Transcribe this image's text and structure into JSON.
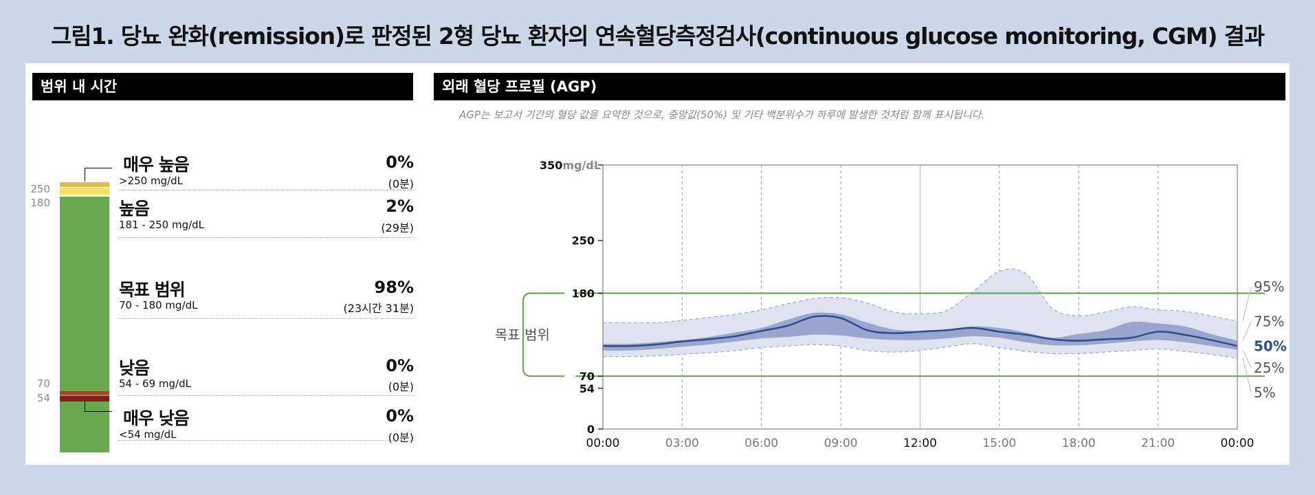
{
  "figure_title": "그림1. 당뇨 완화(remission)로 판정된 2형 당뇨 환자의 연속혈당측정검사(continuous glucose monitoring, CGM) 결과",
  "tir": {
    "header": "범위 내 시간",
    "ticks": [
      "250",
      "180",
      "70",
      "54"
    ],
    "colors": {
      "very_high": "#e3b94a",
      "high": "#f4e25f",
      "target": "#6aa84f",
      "low": "#c0392b",
      "very_low": "#8b1a1a"
    },
    "categories": [
      {
        "name": "매우 높음",
        "range": ">250 mg/dL",
        "percent": "0%",
        "duration": "(0분)"
      },
      {
        "name": "높음",
        "range": "181 - 250 mg/dL",
        "percent": "2%",
        "duration": "(29분)"
      },
      {
        "name": "목표 범위",
        "range": "70 - 180 mg/dL",
        "percent": "98%",
        "duration": "(23시간 31분)"
      },
      {
        "name": "낮음",
        "range": "54 - 69 mg/dL",
        "percent": "0%",
        "duration": "(0분)"
      },
      {
        "name": "매우 낮음",
        "range": "<54 mg/dL",
        "percent": "0%",
        "duration": "(0분)"
      }
    ]
  },
  "agp": {
    "header": "외래 혈당 프로필 (AGP)",
    "note": "AGP는 보고서 기간의 혈당 값을 요약한 것으로, 중앙값(50%) 및 기타 백분위수가 하루에 발생한 것처럼 함께 표시됩니다.",
    "target_label": "목표 범위",
    "colors": {
      "median": "#2e4f8a",
      "iqr": "#9aa6d0",
      "outer": "#dfe3f0",
      "target_line": "#6aa84f"
    }
  },
  "chart_data": {
    "type": "area",
    "y_unit": "mg/dL",
    "ylim": [
      0,
      350
    ],
    "y_ticks": [
      0,
      54,
      70,
      180,
      250,
      350
    ],
    "y_tick_labels": [
      "0",
      "54",
      "70",
      "180",
      "250",
      "350"
    ],
    "target_range": [
      70,
      180
    ],
    "x_tick_labels": [
      "00:00",
      "03:00",
      "06:00",
      "09:00",
      "12:00",
      "15:00",
      "18:00",
      "21:00",
      "00:00"
    ],
    "x_hours": [
      0,
      1,
      2,
      3,
      4,
      5,
      6,
      7,
      8,
      9,
      10,
      11,
      12,
      13,
      14,
      15,
      16,
      17,
      18,
      19,
      20,
      21,
      22,
      23,
      24
    ],
    "series": [
      {
        "name": "95%",
        "values": [
          141,
          141,
          141,
          144,
          148,
          152,
          158,
          166,
          173,
          174,
          167,
          155,
          153,
          157,
          182,
          209,
          206,
          160,
          150,
          155,
          162,
          158,
          156,
          150,
          143
        ]
      },
      {
        "name": "75%",
        "values": [
          113,
          113,
          115,
          118,
          122,
          128,
          134,
          145,
          154,
          152,
          141,
          132,
          130,
          132,
          136,
          134,
          128,
          121,
          126,
          131,
          142,
          140,
          136,
          126,
          117
        ]
      },
      {
        "name": "50%",
        "values": [
          110,
          110,
          112,
          116,
          119,
          123,
          130,
          137,
          149,
          147,
          131,
          127,
          129,
          131,
          134,
          129,
          125,
          119,
          117,
          119,
          121,
          129,
          125,
          118,
          110
        ]
      },
      {
        "name": "25%",
        "values": [
          104,
          104,
          106,
          109,
          112,
          116,
          120,
          122,
          125,
          124,
          120,
          118,
          118,
          120,
          123,
          121,
          115,
          111,
          111,
          113,
          116,
          118,
          115,
          110,
          105
        ]
      },
      {
        "name": "5%",
        "values": [
          96,
          96,
          97,
          99,
          101,
          104,
          108,
          110,
          112,
          110,
          104,
          102,
          104,
          109,
          113,
          108,
          103,
          100,
          100,
          102,
          104,
          106,
          103,
          99,
          94
        ]
      }
    ]
  }
}
